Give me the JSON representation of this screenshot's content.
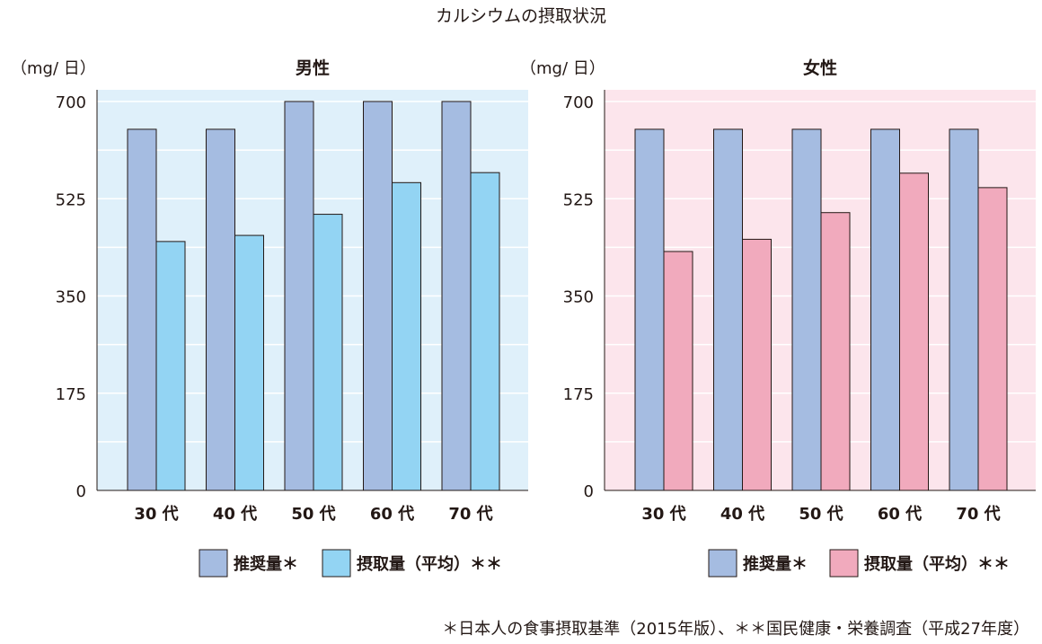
{
  "main_title": "カルシウムの摂取状況",
  "footnote": "＊日本人の食事摂取基準（2015年版）、＊＊国民健康・栄養調査（平成27年度）",
  "colors": {
    "recommended": "#a5bce1",
    "male_intake": "#93d4f3",
    "female_intake": "#f1aabd",
    "male_bg": "#dff0fa",
    "female_bg": "#fce5ec",
    "gridline": "#ffffff",
    "axis": "#231815"
  },
  "chart_data": [
    {
      "type": "bar",
      "title": "男性",
      "ylabel": "（mg/ 日）",
      "ylim": [
        0,
        700
      ],
      "yticks": [
        "0",
        "175",
        "350",
        "525",
        "700"
      ],
      "categories": [
        "30 代",
        "40 代",
        "50 代",
        "60 代",
        "70 代"
      ],
      "grid": true,
      "legend_position": "bottom",
      "series": [
        {
          "name": "推奨量＊",
          "values": [
            650,
            650,
            700,
            700,
            700
          ]
        },
        {
          "name": "摂取量（平均）＊＊",
          "values": [
            448,
            459,
            497,
            554,
            572
          ]
        }
      ]
    },
    {
      "type": "bar",
      "title": "女性",
      "ylabel": "（mg/ 日）",
      "ylim": [
        0,
        700
      ],
      "yticks": [
        "0",
        "175",
        "350",
        "525",
        "700"
      ],
      "categories": [
        "30 代",
        "40 代",
        "50 代",
        "60 代",
        "70 代"
      ],
      "grid": true,
      "legend_position": "bottom",
      "series": [
        {
          "name": "推奨量＊",
          "values": [
            650,
            650,
            650,
            650,
            650
          ]
        },
        {
          "name": "摂取量（平均）＊＊",
          "values": [
            430,
            452,
            500,
            571,
            545
          ]
        }
      ]
    }
  ]
}
